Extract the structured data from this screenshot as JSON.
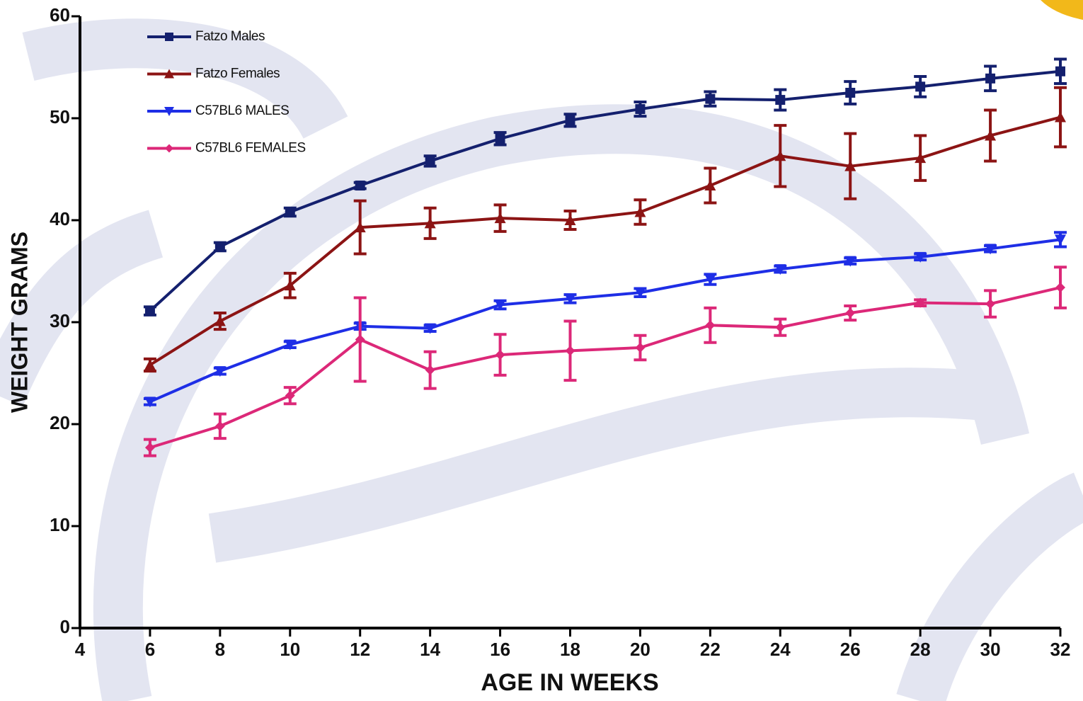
{
  "chart_data": {
    "type": "line",
    "x_label": "AGE IN WEEKS",
    "y_label": "WEIGHT GRAMS",
    "x": [
      6,
      8,
      10,
      12,
      14,
      16,
      18,
      20,
      22,
      24,
      26,
      28,
      30,
      32
    ],
    "xlim": [
      4,
      32
    ],
    "xticks": [
      4,
      6,
      8,
      10,
      12,
      14,
      16,
      18,
      20,
      22,
      24,
      26,
      28,
      30,
      32
    ],
    "ylim": [
      0,
      60
    ],
    "yticks": [
      0,
      10,
      20,
      30,
      40,
      50,
      60
    ],
    "legend": "top-left",
    "series": [
      {
        "name": "Fatzo Males",
        "color": "#14206e",
        "marker": "square",
        "values": [
          31.1,
          37.4,
          40.8,
          43.4,
          45.8,
          48.0,
          49.8,
          50.9,
          51.9,
          51.8,
          52.5,
          53.1,
          53.9,
          54.6
        ],
        "errors": [
          0.4,
          0.4,
          0.4,
          0.3,
          0.5,
          0.6,
          0.6,
          0.7,
          0.7,
          1.0,
          1.1,
          1.0,
          1.2,
          1.2
        ]
      },
      {
        "name": "Fatzo Females",
        "color": "#8c1414",
        "marker": "triangle-up",
        "values": [
          25.8,
          30.1,
          33.6,
          39.3,
          39.7,
          40.2,
          40.0,
          40.8,
          43.4,
          46.3,
          45.3,
          46.1,
          48.3,
          50.1
        ],
        "errors": [
          0.6,
          0.8,
          1.2,
          2.6,
          1.5,
          1.3,
          0.9,
          1.2,
          1.7,
          3.0,
          3.2,
          2.2,
          2.5,
          2.9
        ]
      },
      {
        "name": "C57BL6 MALES",
        "color": "#1e2ee6",
        "marker": "triangle-down",
        "values": [
          22.2,
          25.2,
          27.8,
          29.6,
          29.4,
          31.7,
          32.3,
          32.9,
          34.2,
          35.2,
          36.0,
          36.4,
          37.2,
          38.1
        ],
        "errors": [
          0.3,
          0.3,
          0.3,
          0.3,
          0.3,
          0.4,
          0.4,
          0.4,
          0.5,
          0.3,
          0.3,
          0.3,
          0.3,
          0.7
        ]
      },
      {
        "name": "C57BL6 FEMALES",
        "color": "#dc2878",
        "marker": "diamond",
        "values": [
          17.7,
          19.8,
          22.8,
          28.3,
          25.3,
          26.8,
          27.2,
          27.5,
          29.7,
          29.5,
          30.9,
          31.9,
          31.8,
          33.4
        ],
        "errors": [
          0.8,
          1.2,
          0.8,
          4.1,
          1.8,
          2.0,
          2.9,
          1.2,
          1.7,
          0.8,
          0.7,
          0.3,
          1.3,
          2.0
        ]
      }
    ]
  }
}
